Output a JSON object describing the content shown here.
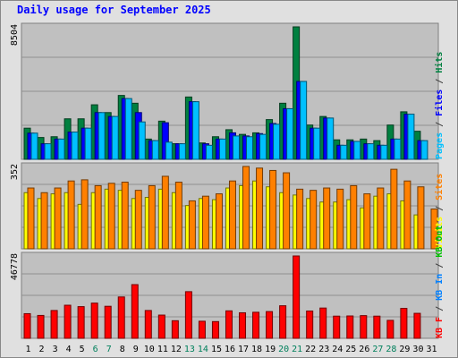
{
  "chart_data": [
    {
      "type": "bar",
      "title": "Daily usage for September 2025",
      "categories": [
        "1",
        "2",
        "3",
        "4",
        "5",
        "6",
        "7",
        "8",
        "9",
        "10",
        "11",
        "12",
        "13",
        "14",
        "15",
        "16",
        "17",
        "18",
        "19",
        "20",
        "21",
        "22",
        "23",
        "24",
        "25",
        "26",
        "27",
        "28",
        "29",
        "30",
        "31"
      ],
      "weekend_days": [
        "6",
        "7",
        "13",
        "14",
        "20",
        "21",
        "27",
        "28"
      ],
      "ymax_label": "8504",
      "ymax": 8504,
      "grid": true,
      "right_label_parts": [
        {
          "text": "Pages",
          "color": "#00c0ff"
        },
        {
          "text": " / ",
          "color": "#404040"
        },
        {
          "text": "Files",
          "color": "#0000ff"
        },
        {
          "text": " / ",
          "color": "#404040"
        },
        {
          "text": "Hits",
          "color": "#008040"
        }
      ],
      "series": [
        {
          "name": "Hits",
          "color": "#008040",
          "values": [
            2000,
            1400,
            1450,
            2600,
            2600,
            3500,
            3000,
            4100,
            3600,
            1300,
            2450,
            1000,
            4000,
            1050,
            1450,
            1900,
            1600,
            1700,
            2550,
            3600,
            8504,
            2200,
            2750,
            1250,
            1250,
            1300,
            1200,
            2200,
            3050,
            1800,
            0
          ]
        },
        {
          "name": "Files",
          "color": "#0000ff",
          "values": [
            1680,
            1000,
            1300,
            1750,
            2000,
            3000,
            2750,
            3900,
            3000,
            1200,
            2350,
            1000,
            3700,
            1000,
            1300,
            1700,
            1500,
            1650,
            2300,
            3250,
            5000,
            2000,
            2650,
            900,
            1150,
            1000,
            900,
            1300,
            2900,
            1200,
            0
          ]
        },
        {
          "name": "Pages",
          "color": "#00c0ff",
          "values": [
            1680,
            1000,
            1300,
            1750,
            2000,
            3000,
            2750,
            3900,
            2400,
            1200,
            1100,
            1000,
            3700,
            900,
            1300,
            1500,
            1450,
            1600,
            2250,
            3250,
            5000,
            2000,
            2650,
            900,
            1150,
            1000,
            900,
            1300,
            2900,
            1200,
            0
          ]
        }
      ]
    },
    {
      "type": "bar",
      "categories": [
        "1",
        "2",
        "3",
        "4",
        "5",
        "6",
        "7",
        "8",
        "9",
        "10",
        "11",
        "12",
        "13",
        "14",
        "15",
        "16",
        "17",
        "18",
        "19",
        "20",
        "21",
        "22",
        "23",
        "24",
        "25",
        "26",
        "27",
        "28",
        "29",
        "30",
        "31"
      ],
      "ymax_label": "352",
      "ymax": 352,
      "grid": true,
      "right_label_parts": [
        {
          "text": "Visits",
          "color": "#ffff00"
        },
        {
          "text": " / ",
          "color": "#404040"
        },
        {
          "text": "Sites",
          "color": "#ff8000"
        }
      ],
      "series": [
        {
          "name": "Visits",
          "color": "#ffff00",
          "values": [
            240,
            215,
            235,
            240,
            190,
            240,
            255,
            250,
            215,
            220,
            255,
            240,
            185,
            215,
            210,
            260,
            270,
            290,
            265,
            240,
            230,
            215,
            200,
            200,
            210,
            175,
            225,
            235,
            205,
            145,
            0
          ]
        },
        {
          "name": "Sites",
          "color": "#ff8000",
          "values": [
            260,
            240,
            260,
            290,
            295,
            270,
            280,
            285,
            250,
            270,
            310,
            285,
            205,
            225,
            235,
            290,
            352,
            345,
            335,
            325,
            255,
            250,
            260,
            255,
            270,
            235,
            260,
            340,
            290,
            265,
            170
          ]
        }
      ]
    },
    {
      "type": "bar",
      "categories": [
        "1",
        "2",
        "3",
        "4",
        "5",
        "6",
        "7",
        "8",
        "9",
        "10",
        "11",
        "12",
        "13",
        "14",
        "15",
        "16",
        "17",
        "18",
        "19",
        "20",
        "21",
        "22",
        "23",
        "24",
        "25",
        "26",
        "27",
        "28",
        "29",
        "30",
        "31"
      ],
      "ymax_label": "46778",
      "ymax": 46778,
      "grid": true,
      "right_label_parts": [
        {
          "text": "KB F",
          "color": "#ff0000"
        },
        {
          "text": " / ",
          "color": "#404040"
        },
        {
          "text": "KB In",
          "color": "#0080ff"
        },
        {
          "text": " / ",
          "color": "#404040"
        },
        {
          "text": "KB Out",
          "color": "#00c000"
        }
      ],
      "series": [
        {
          "name": "KB F",
          "color": "#ff0000",
          "values": [
            14000,
            13000,
            15800,
            18800,
            18000,
            20000,
            18200,
            23500,
            30500,
            15800,
            13200,
            10000,
            26500,
            9700,
            9500,
            15600,
            14500,
            14800,
            15200,
            18500,
            46778,
            15500,
            17200,
            12600,
            12700,
            12900,
            12600,
            10200,
            17000,
            14200,
            0
          ]
        }
      ]
    }
  ],
  "colors": {
    "plot_bg": "#c0c0c0",
    "frame_bg": "#e0e0e0",
    "title": "#0000ff",
    "weekday_label": "#000000",
    "weekend_label": "#00805c"
  }
}
